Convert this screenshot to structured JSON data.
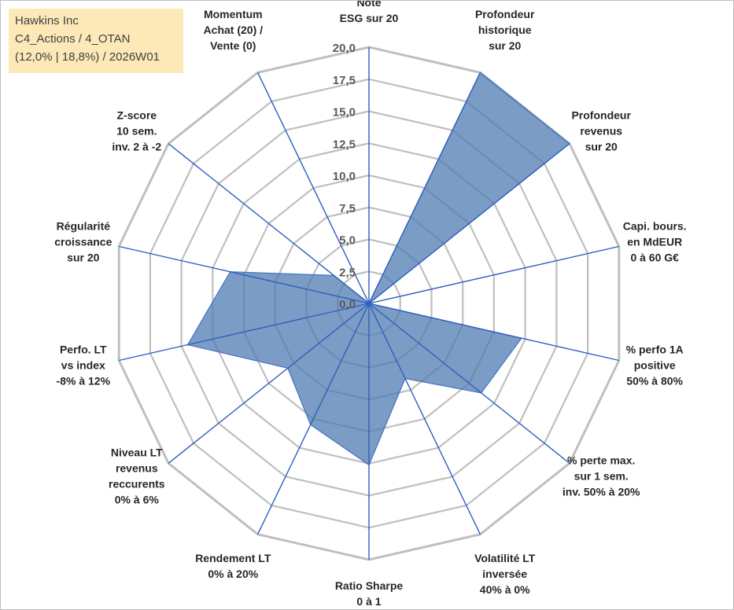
{
  "info_box": {
    "line1": "Hawkins Inc",
    "line2": "C4_Actions / 4_OTAN",
    "line3": "(12,0% | 18,8%) / 2026W01"
  },
  "colors": {
    "fill": "#4f7bb0",
    "outline": "#4472c4",
    "spoke": "#2f5fbf",
    "ring": "#bfbfbf"
  },
  "chart_data": {
    "type": "radar",
    "title": "",
    "range": [
      0,
      20
    ],
    "tick_step": 2.5,
    "ticks": [
      "0,0",
      "2,5",
      "5,0",
      "7,5",
      "10,0",
      "12,5",
      "15,0",
      "17,5",
      "20,0"
    ],
    "axes": [
      {
        "label": [
          "Note",
          "ESG sur 20"
        ],
        "value": 0
      },
      {
        "label": [
          "Profondeur",
          "historique",
          "sur 20"
        ],
        "value": 20
      },
      {
        "label": [
          "Profondeur",
          "revenus",
          "sur 20"
        ],
        "value": 20
      },
      {
        "label": [
          "Capi. bours.",
          "en MdEUR",
          "0 à 60 G€"
        ],
        "value": 0
      },
      {
        "label": [
          "% perfo 1A",
          "positive",
          "50% à 80%"
        ],
        "value": 12.2
      },
      {
        "label": [
          "% perte max.",
          "sur 1 sem.",
          "inv. 50% à 20%"
        ],
        "value": 11.2
      },
      {
        "label": [
          "Volatilité LT",
          "inversée",
          "40% à 0%"
        ],
        "value": 6.5
      },
      {
        "label": [
          "Ratio Sharpe",
          "0 à 1"
        ],
        "value": 12.6
      },
      {
        "label": [
          "Rendement LT",
          "0% à 20%"
        ],
        "value": 10.5
      },
      {
        "label": [
          "Niveau LT",
          "revenus",
          "reccurents",
          "0% à 6%"
        ],
        "value": 8.1
      },
      {
        "label": [
          "Perfo. LT",
          "vs index",
          "-8% à 12%"
        ],
        "value": 14.5
      },
      {
        "label": [
          "Régularité",
          "croissance",
          "sur 20"
        ],
        "value": 11.1
      },
      {
        "label": [
          "Z-score",
          "10 sem.",
          "inv. 2 à -2"
        ],
        "value": 3.5
      },
      {
        "label": [
          "Momentum",
          "Achat (20) /",
          "Vente (0)"
        ],
        "value": 0
      }
    ]
  }
}
